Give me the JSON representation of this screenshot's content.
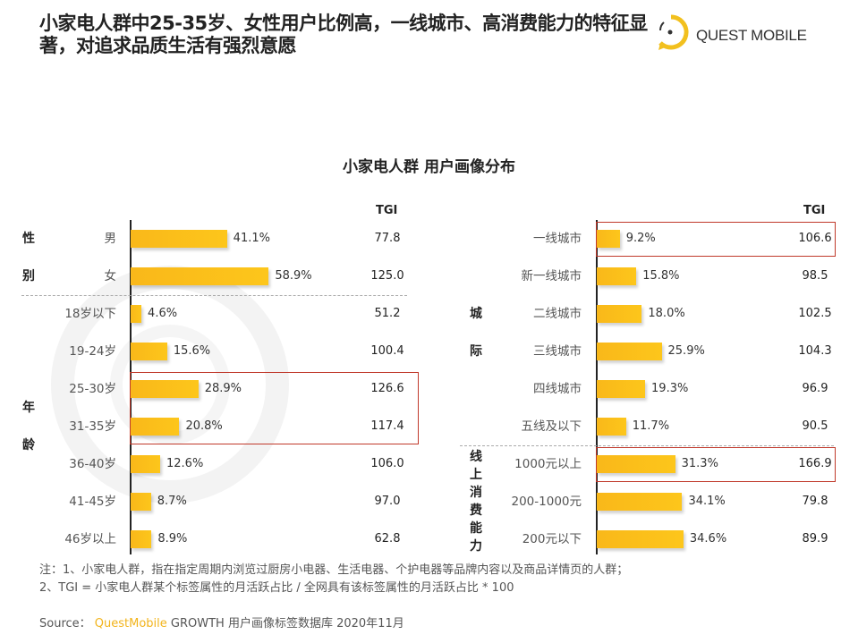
{
  "headline": "小家电人群中25-35岁、女性用户比例高，一线城市、高消费能力的特征显著，对追求品质生活有强烈意愿",
  "logo": {
    "text": "QUEST MOBILE",
    "color": "#f2c01e"
  },
  "watermark": "QUEST MOBILE",
  "chart_data": [
    {
      "type": "bar",
      "orientation": "horizontal",
      "title": "小家电人群 用户画像分布",
      "tgi_header": "TGI",
      "groups": [
        {
          "label": "性别",
          "categories": [
            "男",
            "女"
          ],
          "values": [
            41.1,
            58.9
          ],
          "labels": [
            "41.1%",
            "58.9%"
          ],
          "tgi": [
            "77.8",
            "125.0"
          ]
        },
        {
          "label": "年龄",
          "categories": [
            "18岁以下",
            "19-24岁",
            "25-30岁",
            "31-35岁",
            "36-40岁",
            "41-45岁",
            "46岁以上"
          ],
          "values": [
            4.6,
            15.6,
            28.9,
            20.8,
            12.6,
            8.7,
            8.9
          ],
          "labels": [
            "4.6%",
            "15.6%",
            "28.9%",
            "20.8%",
            "12.6%",
            "8.7%",
            "8.9%"
          ],
          "tgi": [
            "51.2",
            "100.4",
            "126.6",
            "117.4",
            "106.0",
            "97.0",
            "62.8"
          ]
        }
      ],
      "highlighted": [
        "25-30岁",
        "31-35岁"
      ],
      "bar_color": "#fdc61b",
      "highlight_color": "#c0392b"
    },
    {
      "type": "bar",
      "orientation": "horizontal",
      "tgi_header": "TGI",
      "groups": [
        {
          "label": "城际",
          "categories": [
            "一线城市",
            "新一线城市",
            "二线城市",
            "三线城市",
            "四线城市",
            "五线及以下"
          ],
          "values": [
            9.2,
            15.8,
            18.0,
            25.9,
            19.3,
            11.7
          ],
          "labels": [
            "9.2%",
            "15.8%",
            "18.0%",
            "25.9%",
            "19.3%",
            "11.7%"
          ],
          "tgi": [
            "106.6",
            "98.5",
            "102.5",
            "104.3",
            "96.9",
            "90.5"
          ]
        },
        {
          "label": "线上消费能力",
          "categories": [
            "1000元以上",
            "200-1000元",
            "200元以下"
          ],
          "values": [
            31.3,
            34.1,
            34.6
          ],
          "labels": [
            "31.3%",
            "34.1%",
            "34.6%"
          ],
          "tgi": [
            "166.9",
            "79.8",
            "89.9"
          ]
        }
      ],
      "highlighted": [
        "一线城市",
        "1000元以上"
      ],
      "bar_color": "#fdc61b",
      "highlight_color": "#c0392b"
    }
  ],
  "notes": [
    "注：1、小家电人群，指在指定周期内浏览过厨房小电器、生活电器、个护电器等品牌内容以及商品详情页的人群；",
    "2、TGI = 小家电人群某个标签属性的月活跃占比 / 全网具有该标签属性的月活跃占比 * 100"
  ],
  "source": {
    "prefix": "Source：",
    "brand": "QuestMobile",
    "text": "GROWTH 用户画像标签数据库 2020年11月"
  }
}
